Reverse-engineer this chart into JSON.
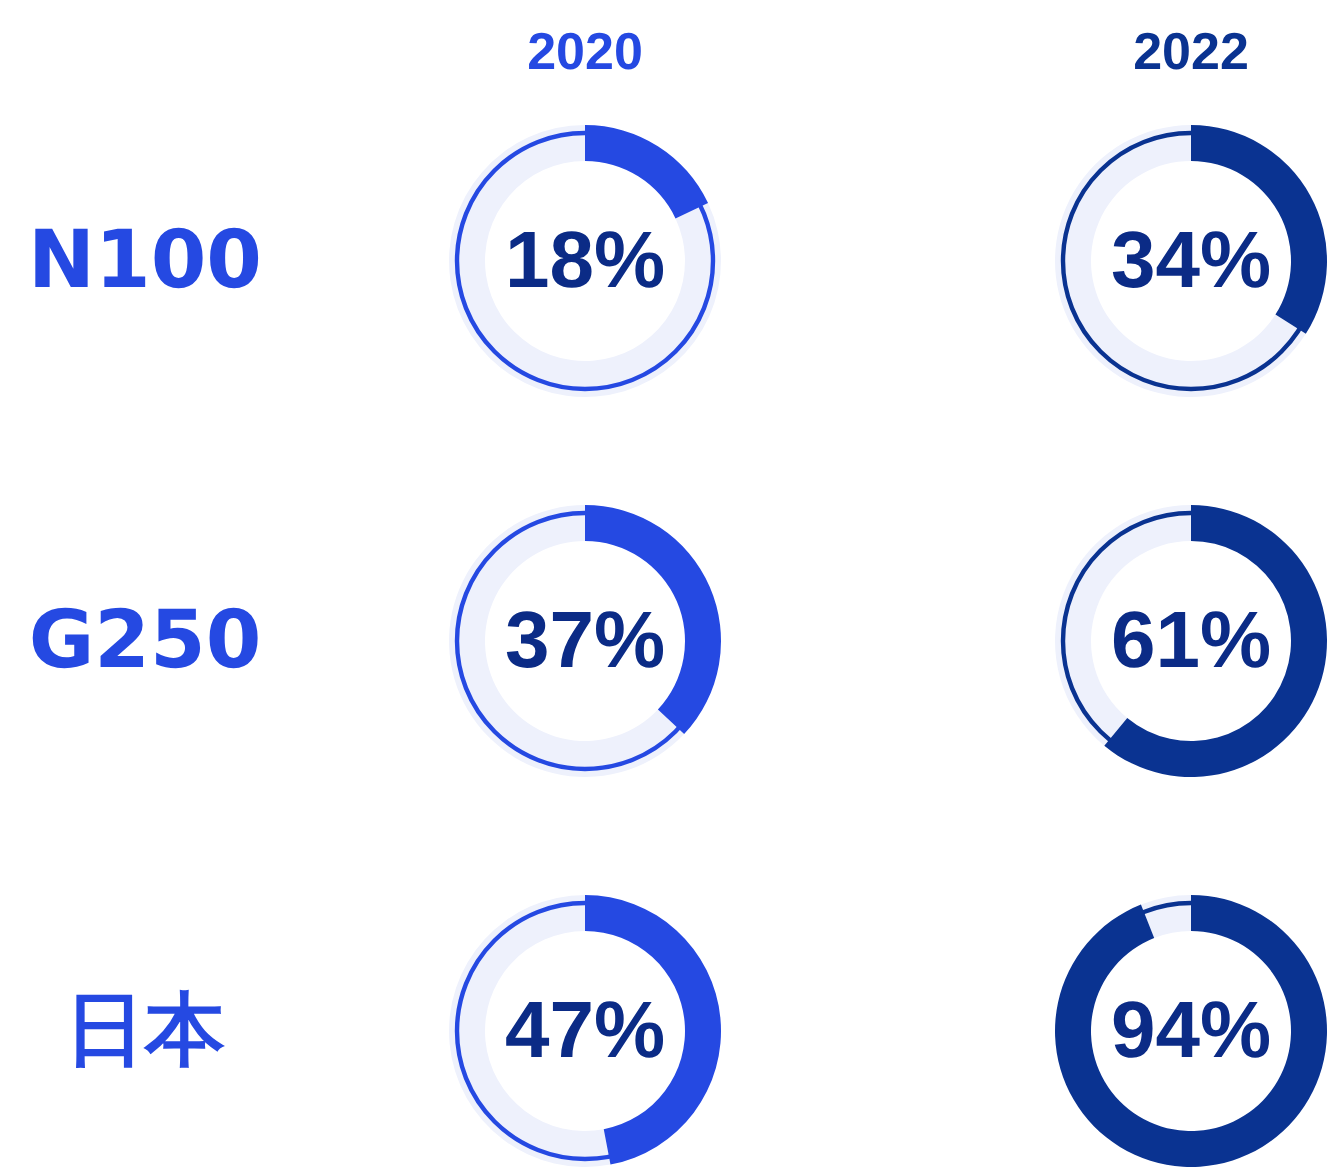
{
  "chart_data": [
    {
      "type": "donut",
      "title": "2020",
      "ylabel": "N100",
      "categories": [
        null,
        null
      ],
      "values": [
        18,
        82
      ],
      "colors": [
        "#2549e2",
        "#eef1fc"
      ],
      "annotations": [
        "18%"
      ]
    },
    {
      "type": "donut",
      "title": "2022",
      "categories": [
        null,
        null
      ],
      "values": [
        34,
        66
      ],
      "colors": [
        "#0a3391",
        "#eef1fc"
      ],
      "annotations": [
        "34%"
      ]
    },
    {
      "type": "donut",
      "ylabel": "G250",
      "categories": [
        null,
        null
      ],
      "values": [
        37,
        63
      ],
      "colors": [
        "#2549e2",
        "#eef1fc"
      ],
      "annotations": [
        "37%"
      ]
    },
    {
      "type": "donut",
      "categories": [
        null,
        null
      ],
      "values": [
        61,
        39
      ],
      "colors": [
        "#0a3391",
        "#eef1fc"
      ],
      "annotations": [
        "61%"
      ]
    },
    {
      "type": "donut",
      "ylabel": "日本",
      "categories": [
        null,
        null
      ],
      "values": [
        47,
        53
      ],
      "colors": [
        "#2549e2",
        "#eef1fc"
      ],
      "annotations": [
        "47%"
      ]
    },
    {
      "type": "donut",
      "categories": [
        null,
        null
      ],
      "values": [
        94,
        6
      ],
      "colors": [
        "#0a3391",
        "#eef1fc"
      ],
      "annotations": [
        "94%"
      ]
    }
  ]
}
